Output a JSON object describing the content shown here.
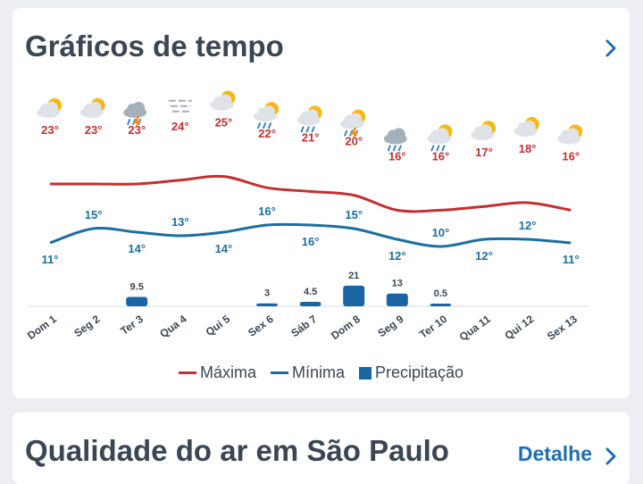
{
  "card": {
    "title": "Gráficos de tempo"
  },
  "air_card": {
    "title": "Qualidade do ar em São Paulo",
    "detail_label": "Detalhe"
  },
  "colors": {
    "max": "#c42f2f",
    "min": "#1a6fa1",
    "precip": "#1a64a4",
    "accent": "#1c6fb5"
  },
  "legend": {
    "max": "Máxima",
    "min": "Mínima",
    "precip": "Precipitação"
  },
  "chart_data": {
    "type": "line",
    "categories": [
      "Dom 1",
      "Seg 2",
      "Ter 3",
      "Qua 4",
      "Qui 5",
      "Sex 6",
      "Sáb 7",
      "Dom 8",
      "Seg 9",
      "Ter 10",
      "Qua 11",
      "Qui 12",
      "Sex 13"
    ],
    "icons": [
      "partly-sunny-icon",
      "partly-sunny-icon",
      "thunderstorm-icon",
      "fog-icon",
      "partly-sunny-icon",
      "sun-rain-icon",
      "sun-rain-icon",
      "sun-thunderstorm-icon",
      "rain-icon",
      "sun-rain-icon",
      "partly-sunny-icon",
      "partly-sunny-icon",
      "partly-sunny-icon"
    ],
    "series": [
      {
        "name": "Máxima",
        "values": [
          23,
          23,
          23,
          24,
          25,
          22,
          21,
          20,
          16,
          16,
          17,
          18,
          16
        ],
        "labels": [
          "23°",
          "23°",
          "23°",
          "24°",
          "25°",
          "22°",
          "21°",
          "20°",
          "16°",
          "16°",
          "17°",
          "18°",
          "16°"
        ]
      },
      {
        "name": "Mínima",
        "values": [
          11,
          15,
          14,
          13,
          14,
          16,
          16,
          15,
          12,
          10,
          12,
          12,
          11
        ],
        "labels": [
          "11°",
          "15°",
          "14°",
          "13°",
          "14°",
          "16°",
          "16°",
          "15°",
          "12°",
          "10°",
          "12°",
          "12°",
          "11°"
        ]
      },
      {
        "name": "Precipitação",
        "type": "bar",
        "values": [
          0,
          0,
          9.5,
          0,
          0,
          3,
          4.5,
          21,
          13,
          0.5,
          0,
          0,
          0
        ],
        "labels": [
          "",
          "",
          "9.5",
          "",
          "",
          "3",
          "4.5",
          "21",
          "13",
          "0.5",
          "",
          "",
          ""
        ]
      }
    ]
  }
}
